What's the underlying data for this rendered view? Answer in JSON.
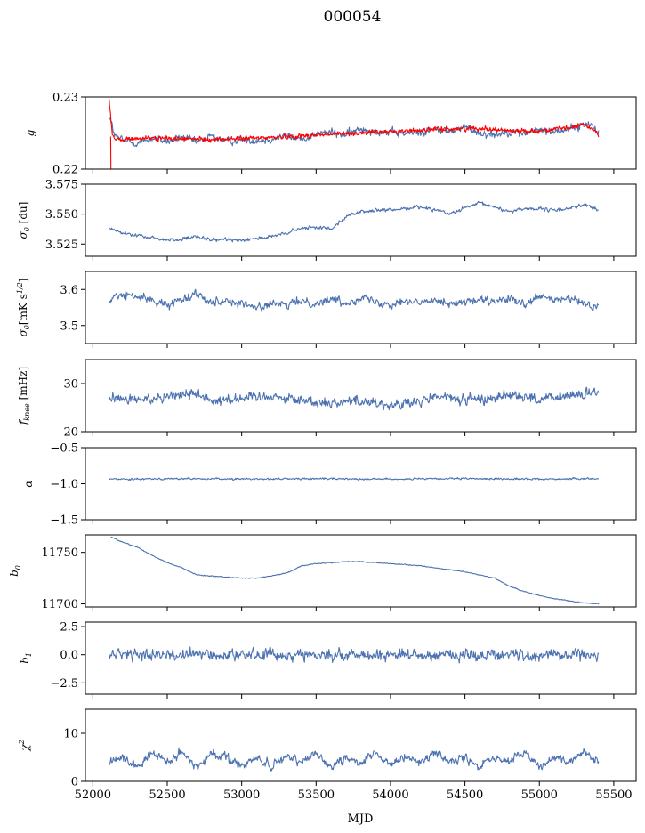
{
  "figure": {
    "title": "000054",
    "xlabel": "MJD",
    "xlim": [
      51950,
      55650
    ],
    "xticks": [
      52000,
      52500,
      53000,
      53500,
      54000,
      54500,
      55000,
      55500
    ],
    "colors": {
      "series": "#4c72b0",
      "overlay": "#ff0000"
    }
  },
  "chart_data": [
    {
      "type": "line",
      "ylabel": "g",
      "ylim": [
        0.22,
        0.23
      ],
      "yticks": [
        0.22,
        0.23
      ],
      "series": [
        {
          "values": [
            [
              52110,
              0.2274
            ],
            [
              52150,
              0.2245
            ],
            [
              52200,
              0.224
            ],
            [
              52300,
              0.2236
            ],
            [
              52400,
              0.2243
            ],
            [
              52500,
              0.2238
            ],
            [
              52600,
              0.2244
            ],
            [
              52700,
              0.2237
            ],
            [
              52800,
              0.2246
            ],
            [
              52900,
              0.2238
            ],
            [
              53000,
              0.2241
            ],
            [
              53100,
              0.224
            ],
            [
              53200,
              0.2242
            ],
            [
              53300,
              0.2246
            ],
            [
              53400,
              0.2241
            ],
            [
              53500,
              0.2249
            ],
            [
              53600,
              0.2251
            ],
            [
              53700,
              0.2247
            ],
            [
              53800,
              0.2256
            ],
            [
              53900,
              0.2253
            ],
            [
              54000,
              0.225
            ],
            [
              54100,
              0.2249
            ],
            [
              54200,
              0.2251
            ],
            [
              54300,
              0.2255
            ],
            [
              54400,
              0.2252
            ],
            [
              54500,
              0.2258
            ],
            [
              54600,
              0.225
            ],
            [
              54700,
              0.2248
            ],
            [
              54800,
              0.2252
            ],
            [
              54900,
              0.2249
            ],
            [
              55000,
              0.2254
            ],
            [
              55100,
              0.2252
            ],
            [
              55200,
              0.2256
            ],
            [
              55300,
              0.2261
            ],
            [
              55350,
              0.2262
            ],
            [
              55400,
              0.2252
            ]
          ],
          "color": "#4c72b0",
          "noise": 0.0008
        },
        {
          "values": [
            [
              52110,
              0.2296
            ],
            [
              52130,
              0.225
            ],
            [
              52150,
              0.224
            ],
            [
              52250,
              0.2242
            ],
            [
              52400,
              0.2243
            ],
            [
              52600,
              0.2242
            ],
            [
              52800,
              0.2241
            ],
            [
              53000,
              0.2242
            ],
            [
              53200,
              0.2244
            ],
            [
              53400,
              0.2246
            ],
            [
              53600,
              0.2248
            ],
            [
              53800,
              0.225
            ],
            [
              54000,
              0.2252
            ],
            [
              54200,
              0.2254
            ],
            [
              54300,
              0.2255
            ],
            [
              54500,
              0.2256
            ],
            [
              54600,
              0.2257
            ],
            [
              54800,
              0.2253
            ],
            [
              55000,
              0.2253
            ],
            [
              55200,
              0.2257
            ],
            [
              55300,
              0.2262
            ],
            [
              55400,
              0.225
            ]
          ],
          "color": "#ff0000",
          "noise": 0.00045
        }
      ]
    },
    {
      "type": "line",
      "ylabel": "σ0 [du]",
      "ylim": [
        3.5148,
        3.575
      ],
      "yticks": [
        3.525,
        3.55,
        3.575
      ],
      "series": [
        {
          "values": [
            [
              52110,
              3.538
            ],
            [
              52200,
              3.534
            ],
            [
              52300,
              3.532
            ],
            [
              52400,
              3.53
            ],
            [
              52500,
              3.5285
            ],
            [
              52600,
              3.529
            ],
            [
              52700,
              3.531
            ],
            [
              52800,
              3.528
            ],
            [
              52900,
              3.529
            ],
            [
              53000,
              3.5285
            ],
            [
              53100,
              3.53
            ],
            [
              53200,
              3.531
            ],
            [
              53300,
              3.534
            ],
            [
              53400,
              3.538
            ],
            [
              53500,
              3.539
            ],
            [
              53600,
              3.538
            ],
            [
              53700,
              3.548
            ],
            [
              53800,
              3.552
            ],
            [
              53900,
              3.553
            ],
            [
              54000,
              3.553
            ],
            [
              54100,
              3.555
            ],
            [
              54200,
              3.556
            ],
            [
              54300,
              3.554
            ],
            [
              54400,
              3.55
            ],
            [
              54500,
              3.555
            ],
            [
              54600,
              3.559
            ],
            [
              54700,
              3.556
            ],
            [
              54800,
              3.552
            ],
            [
              54900,
              3.555
            ],
            [
              55000,
              3.554
            ],
            [
              55100,
              3.553
            ],
            [
              55200,
              3.555
            ],
            [
              55300,
              3.558
            ],
            [
              55400,
              3.553
            ]
          ],
          "color": "#4c72b0",
          "noise": 0.0022
        }
      ]
    },
    {
      "type": "line",
      "ylabel": "σ0[mK s^1/2]",
      "ylim": [
        3.45,
        3.65
      ],
      "yticks": [
        3.5,
        3.6
      ],
      "series": [
        {
          "values": [
            [
              52110,
              3.56
            ],
            [
              52150,
              3.585
            ],
            [
              52300,
              3.58
            ],
            [
              52400,
              3.57
            ],
            [
              52500,
              3.555
            ],
            [
              52600,
              3.575
            ],
            [
              52700,
              3.59
            ],
            [
              52800,
              3.565
            ],
            [
              52900,
              3.57
            ],
            [
              53000,
              3.56
            ],
            [
              53100,
              3.55
            ],
            [
              53200,
              3.56
            ],
            [
              53300,
              3.555
            ],
            [
              53400,
              3.57
            ],
            [
              53500,
              3.56
            ],
            [
              53600,
              3.575
            ],
            [
              53700,
              3.56
            ],
            [
              53800,
              3.58
            ],
            [
              53900,
              3.565
            ],
            [
              54000,
              3.56
            ],
            [
              54100,
              3.57
            ],
            [
              54200,
              3.56
            ],
            [
              54300,
              3.575
            ],
            [
              54400,
              3.56
            ],
            [
              54500,
              3.565
            ],
            [
              54600,
              3.57
            ],
            [
              54700,
              3.565
            ],
            [
              54800,
              3.575
            ],
            [
              54900,
              3.555
            ],
            [
              55000,
              3.58
            ],
            [
              55100,
              3.57
            ],
            [
              55200,
              3.575
            ],
            [
              55300,
              3.56
            ],
            [
              55400,
              3.55
            ]
          ],
          "color": "#4c72b0",
          "noise": 0.016
        }
      ]
    },
    {
      "type": "line",
      "ylabel": "fknee [mHz]",
      "ylim": [
        20,
        35
      ],
      "yticks": [
        20,
        30
      ],
      "series": [
        {
          "values": [
            [
              52110,
              27.0
            ],
            [
              52300,
              26.5
            ],
            [
              52500,
              27.5
            ],
            [
              52700,
              28.0
            ],
            [
              52800,
              26.5
            ],
            [
              53000,
              27.0
            ],
            [
              53200,
              27.5
            ],
            [
              53400,
              26.5
            ],
            [
              53600,
              26.0
            ],
            [
              53800,
              26.5
            ],
            [
              54000,
              25.5
            ],
            [
              54200,
              26.0
            ],
            [
              54300,
              27.5
            ],
            [
              54500,
              26.5
            ],
            [
              54700,
              27.0
            ],
            [
              54800,
              28.0
            ],
            [
              55000,
              26.5
            ],
            [
              55200,
              27.5
            ],
            [
              55400,
              28.0
            ]
          ],
          "color": "#4c72b0",
          "noise": 1.6
        }
      ]
    },
    {
      "type": "line",
      "ylabel": "α",
      "ylim": [
        -1.5,
        -0.5
      ],
      "yticks": [
        -1.5,
        -1.0,
        -0.5
      ],
      "series": [
        {
          "values": [
            [
              52110,
              -0.935
            ],
            [
              52500,
              -0.93
            ],
            [
              53000,
              -0.935
            ],
            [
              53500,
              -0.93
            ],
            [
              54000,
              -0.935
            ],
            [
              54500,
              -0.93
            ],
            [
              55000,
              -0.935
            ],
            [
              55400,
              -0.93
            ]
          ],
          "color": "#4c72b0",
          "noise": 0.018
        }
      ]
    },
    {
      "type": "line",
      "ylabel": "b0",
      "ylim": [
        11697,
        11767
      ],
      "yticks": [
        11700,
        11750
      ],
      "series": [
        {
          "values": [
            [
              52120,
              11765
            ],
            [
              52200,
              11760
            ],
            [
              52300,
              11755
            ],
            [
              52400,
              11747
            ],
            [
              52500,
              11740
            ],
            [
              52600,
              11735
            ],
            [
              52700,
              11728
            ],
            [
              52800,
              11727
            ],
            [
              52900,
              11726
            ],
            [
              53000,
              11725
            ],
            [
              53100,
              11725
            ],
            [
              53200,
              11727
            ],
            [
              53300,
              11730
            ],
            [
              53350,
              11733
            ],
            [
              53400,
              11737
            ],
            [
              53500,
              11739
            ],
            [
              53700,
              11741
            ],
            [
              53800,
              11741
            ],
            [
              53900,
              11740
            ],
            [
              54000,
              11739
            ],
            [
              54100,
              11738
            ],
            [
              54200,
              11737
            ],
            [
              54300,
              11735
            ],
            [
              54400,
              11733
            ],
            [
              54500,
              11731
            ],
            [
              54600,
              11728
            ],
            [
              54700,
              11725
            ],
            [
              54800,
              11717
            ],
            [
              54900,
              11712
            ],
            [
              55000,
              11708
            ],
            [
              55100,
              11705
            ],
            [
              55200,
              11703
            ],
            [
              55300,
              11701
            ],
            [
              55400,
              11700
            ]
          ],
          "color": "#4c72b0",
          "noise": 0.6
        }
      ]
    },
    {
      "type": "line",
      "ylabel": "b1",
      "ylim": [
        -3.5,
        2.9
      ],
      "yticks": [
        -2.5,
        0.0,
        2.5
      ],
      "series": [
        {
          "values": [
            [
              52110,
              0.0
            ],
            [
              53000,
              0.0
            ],
            [
              54000,
              0.0
            ],
            [
              55400,
              0.0
            ]
          ],
          "color": "#4c72b0",
          "noise": 0.75
        }
      ]
    },
    {
      "type": "line",
      "ylabel": "χ2",
      "ylim": [
        0,
        15
      ],
      "yticks": [
        0,
        10
      ],
      "series": [
        {
          "values": [
            [
              52110,
              4
            ],
            [
              52200,
              5
            ],
            [
              52300,
              3
            ],
            [
              52400,
              6
            ],
            [
              52500,
              4
            ],
            [
              52600,
              6
            ],
            [
              52700,
              3
            ],
            [
              52800,
              6
            ],
            [
              52900,
              5
            ],
            [
              53000,
              3
            ],
            [
              53100,
              5
            ],
            [
              53200,
              3
            ],
            [
              53300,
              5
            ],
            [
              53400,
              4
            ],
            [
              53500,
              6
            ],
            [
              53600,
              3
            ],
            [
              53700,
              5
            ],
            [
              53800,
              4
            ],
            [
              53900,
              6
            ],
            [
              54000,
              3
            ],
            [
              54100,
              5
            ],
            [
              54200,
              4
            ],
            [
              54300,
              6
            ],
            [
              54400,
              4
            ],
            [
              54500,
              5
            ],
            [
              54600,
              3
            ],
            [
              54700,
              5
            ],
            [
              54800,
              4
            ],
            [
              54900,
              6
            ],
            [
              55000,
              3
            ],
            [
              55100,
              5
            ],
            [
              55200,
              4
            ],
            [
              55300,
              6
            ],
            [
              55400,
              4
            ]
          ],
          "color": "#4c72b0",
          "noise": 1.3
        }
      ]
    }
  ]
}
